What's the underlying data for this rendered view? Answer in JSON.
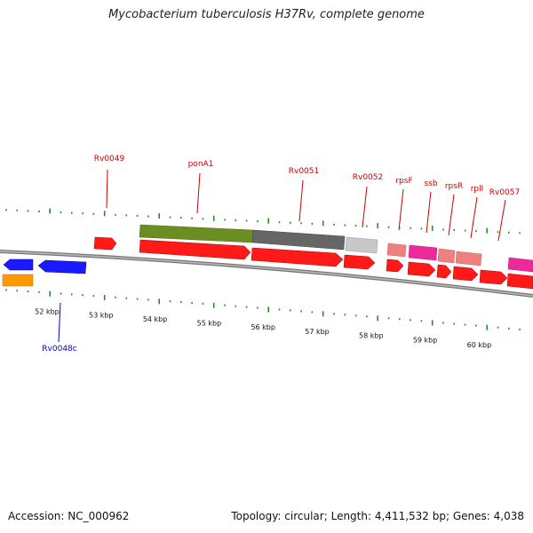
{
  "title": "Mycobacterium tuberculosis H37Rv, complete genome",
  "footer": {
    "accession_label": "Accession:",
    "accession": "NC_000962",
    "topology_label": "Topology:",
    "topology": "circular",
    "length_label": "Length:",
    "length": "4,411,532 bp",
    "genes_label": "Genes:",
    "genes": "4,038"
  },
  "colors": {
    "forward_cds": "#ff1a1a",
    "reverse_cds": "#1a1aff",
    "backbone": "#888888",
    "tick": "#2a8a2a",
    "forward_label": "#cc0000",
    "reverse_label": "#0000cc",
    "orange_feature": "#ff9900",
    "green_feature": "#6b8e23",
    "dark_grey_feature": "#666666",
    "light_grey_feature": "#c8c8c8",
    "pink_feature": "#ee2a9b",
    "salmon_feature": "#f08080"
  },
  "ticks": [
    {
      "kbp": 52,
      "label": "52 kbp"
    },
    {
      "kbp": 53,
      "label": "53 kbp"
    },
    {
      "kbp": 54,
      "label": "54 kbp"
    },
    {
      "kbp": 55,
      "label": "55 kbp"
    },
    {
      "kbp": 56,
      "label": "56 kbp"
    },
    {
      "kbp": 57,
      "label": "57 kbp"
    },
    {
      "kbp": 58,
      "label": "58 kbp"
    },
    {
      "kbp": 59,
      "label": "59 kbp"
    },
    {
      "kbp": 60,
      "label": "60 kbp"
    }
  ],
  "genes": [
    {
      "name": "Rv0049",
      "strand": "forward"
    },
    {
      "name": "ponA1",
      "strand": "forward"
    },
    {
      "name": "Rv0051",
      "strand": "forward"
    },
    {
      "name": "Rv0052",
      "strand": "forward"
    },
    {
      "name": "rpsF",
      "strand": "forward"
    },
    {
      "name": "ssb",
      "strand": "forward"
    },
    {
      "name": "rpsR",
      "strand": "forward"
    },
    {
      "name": "rplI",
      "strand": "forward"
    },
    {
      "name": "Rv0057",
      "strand": "forward"
    },
    {
      "name": "Rv0048c",
      "strand": "reverse"
    }
  ]
}
